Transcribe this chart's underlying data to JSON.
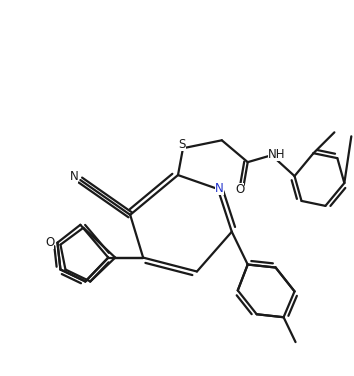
{
  "background_color": "#ffffff",
  "line_color": "#1a1a1a",
  "line_width": 1.6,
  "figsize": [
    3.54,
    3.76
  ],
  "dpi": 100,
  "xlim": [
    0,
    10
  ],
  "ylim": [
    0,
    10.6
  ]
}
